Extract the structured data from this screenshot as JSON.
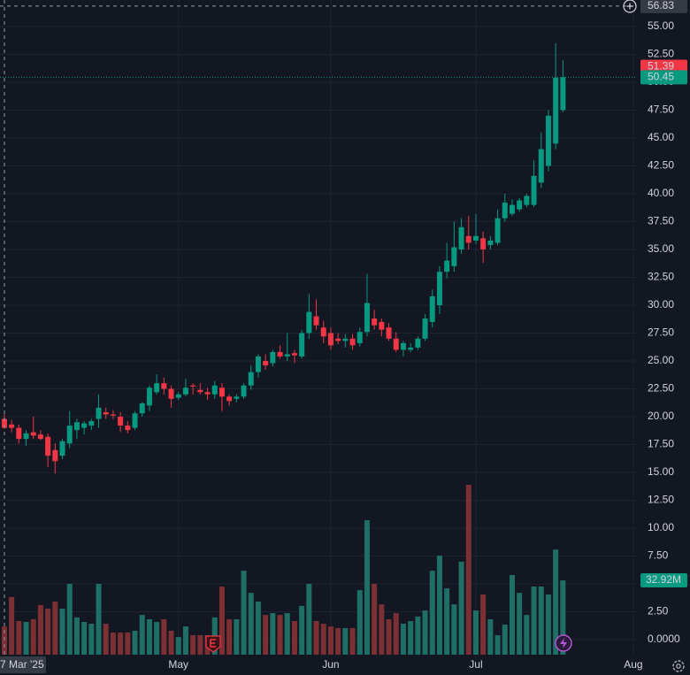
{
  "chart_data": {
    "type": "candlestick",
    "open": [
      19.8,
      19.3,
      19.0,
      18.0,
      18.6,
      18.4,
      18.2,
      17.0,
      16.5,
      17.6,
      18.8,
      19.0,
      19.2,
      19.8,
      20.4,
      20.2,
      20.0,
      19.2,
      19.0,
      20.3,
      21.0,
      22.2,
      23.0,
      22.5,
      21.7,
      22.0,
      22.8,
      22.4,
      22.2,
      22.0,
      22.6,
      21.8,
      21.6,
      21.8,
      22.8,
      24.0,
      25.0,
      24.8,
      25.8,
      25.4,
      25.7,
      25.4,
      27.5,
      29.0,
      28.0,
      27.5,
      27.0,
      26.8,
      27.0,
      26.6,
      27.6,
      28.8,
      28.5,
      28.0,
      27.0,
      26.0,
      26.0,
      26.2,
      27.0,
      28.5,
      30.0,
      33.0,
      33.5,
      35.0,
      36.2,
      35.8,
      36.0,
      35.4,
      35.6,
      37.8,
      38.2,
      38.6,
      39.0,
      39.0,
      41.0,
      42.5,
      44.5,
      47.5
    ],
    "high": [
      20.2,
      19.7,
      19.3,
      18.8,
      20.0,
      18.8,
      18.5,
      17.6,
      18.0,
      20.5,
      19.8,
      19.6,
      19.8,
      22.0,
      20.8,
      20.6,
      20.4,
      19.6,
      20.5,
      21.3,
      22.8,
      23.8,
      23.5,
      22.8,
      22.2,
      23.4,
      23.0,
      23.0,
      22.6,
      23.2,
      23.0,
      22.0,
      22.0,
      23.0,
      24.6,
      25.6,
      25.6,
      26.0,
      26.4,
      27.5,
      26.0,
      27.8,
      31.0,
      30.5,
      28.6,
      28.0,
      27.5,
      27.4,
      27.4,
      28.0,
      32.8,
      29.6,
      28.8,
      28.4,
      27.6,
      26.8,
      26.6,
      27.2,
      29.2,
      31.4,
      33.5,
      35.6,
      37.5,
      37.8,
      38.0,
      38.2,
      36.6,
      36.2,
      38.6,
      40.0,
      39.5,
      39.6,
      40.0,
      43.0,
      45.5,
      47.5,
      53.5,
      52.0
    ],
    "low": [
      18.9,
      18.6,
      17.6,
      17.4,
      18.0,
      17.9,
      15.5,
      14.9,
      16.2,
      17.2,
      18.0,
      18.4,
      18.8,
      19.0,
      19.8,
      19.8,
      18.6,
      18.5,
      18.8,
      20.0,
      20.5,
      22.0,
      22.0,
      20.8,
      21.5,
      21.8,
      22.0,
      22.0,
      21.5,
      21.6,
      20.5,
      21.0,
      21.3,
      21.6,
      22.4,
      23.5,
      24.2,
      24.5,
      25.2,
      25.0,
      24.8,
      25.2,
      27.0,
      27.8,
      26.6,
      26.0,
      26.5,
      26.2,
      26.0,
      26.3,
      27.2,
      27.8,
      27.2,
      26.8,
      25.8,
      25.4,
      25.8,
      26.0,
      26.8,
      28.0,
      29.2,
      32.4,
      33.0,
      34.6,
      35.0,
      35.5,
      33.8,
      35.0,
      35.4,
      37.5,
      38.0,
      38.4,
      38.8,
      38.8,
      40.5,
      42.0,
      44.0,
      47.3
    ],
    "close": [
      19.0,
      19.0,
      18.0,
      18.5,
      18.3,
      18.0,
      16.5,
      16.0,
      17.8,
      19.2,
      19.5,
      19.4,
      19.6,
      20.8,
      20.2,
      20.1,
      19.2,
      18.8,
      20.3,
      21.2,
      22.6,
      23.0,
      22.5,
      21.6,
      22.0,
      22.6,
      22.7,
      22.2,
      22.0,
      22.8,
      21.8,
      21.4,
      21.8,
      22.8,
      24.0,
      25.4,
      24.6,
      25.8,
      25.4,
      25.6,
      25.5,
      27.5,
      29.4,
      28.2,
      27.2,
      26.4,
      26.8,
      27.0,
      26.4,
      27.6,
      30.2,
      28.2,
      27.8,
      27.0,
      26.0,
      26.6,
      26.2,
      27.0,
      28.8,
      30.8,
      33.0,
      34.0,
      35.2,
      37.0,
      35.6,
      36.2,
      35.0,
      35.8,
      37.8,
      39.2,
      39.0,
      39.4,
      39.8,
      41.6,
      44.0,
      47.0,
      50.4,
      50.45
    ],
    "volume": [
      12.5,
      25.5,
      14.9,
      14.5,
      15.7,
      22.0,
      20.4,
      23.5,
      20.4,
      31.4,
      16.5,
      14.5,
      13.7,
      31.4,
      13.7,
      9.8,
      9.8,
      9.8,
      10.6,
      17.6,
      15.7,
      14.5,
      15.7,
      10.6,
      7.8,
      12.5,
      8.6,
      8.6,
      8.6,
      16.5,
      30.2,
      15.7,
      15.7,
      37.2,
      27.4,
      23.5,
      17.6,
      18.4,
      17.6,
      18.4,
      14.9,
      21.6,
      31.4,
      14.9,
      13.7,
      12.5,
      11.8,
      11.8,
      11.8,
      28.6,
      59.6,
      31.4,
      22.3,
      15.7,
      18.4,
      13.7,
      14.9,
      16.9,
      19.6,
      37.2,
      43.9,
      29.4,
      22.3,
      41.2,
      75.3,
      19.6,
      26.7,
      15.7,
      8.6,
      13.3,
      35.3,
      27.4,
      17.6,
      30.2,
      30.2,
      26.7,
      46.6,
      32.92
    ],
    "volume_last_label": "32.92M",
    "volume_ylim": [
      0,
      100
    ],
    "up_color": "#089981",
    "down_color": "#f23645",
    "volume_up_color": "#1f6f66",
    "volume_down_color": "#7c3034",
    "ylim": [
      -1.35,
      57.38
    ],
    "yticks": [
      {
        "value": 0,
        "label": "0.0000"
      },
      {
        "value": 2.5,
        "label": "2.50"
      },
      {
        "value": 5,
        "label": "5.00"
      },
      {
        "value": 7.5,
        "label": "7.50"
      },
      {
        "value": 10,
        "label": "10.00"
      },
      {
        "value": 12.5,
        "label": "12.50"
      },
      {
        "value": 15,
        "label": "15.00"
      },
      {
        "value": 17.5,
        "label": "17.50"
      },
      {
        "value": 20,
        "label": "20.00"
      },
      {
        "value": 22.5,
        "label": "22.50"
      },
      {
        "value": 25,
        "label": "25.00"
      },
      {
        "value": 27.5,
        "label": "27.50"
      },
      {
        "value": 30,
        "label": "30.00"
      },
      {
        "value": 32.5,
        "label": "32.50"
      },
      {
        "value": 35,
        "label": "35.00"
      },
      {
        "value": 37.5,
        "label": "37.50"
      },
      {
        "value": 40,
        "label": "40.00"
      },
      {
        "value": 42.5,
        "label": "42.50"
      },
      {
        "value": 45,
        "label": "45.00"
      },
      {
        "value": 47.5,
        "label": "47.50"
      },
      {
        "value": 50,
        "label": "50.00"
      },
      {
        "value": 52.5,
        "label": "52.50"
      },
      {
        "value": 55,
        "label": "55.00"
      }
    ],
    "xlim": [
      -0.6,
      87.2
    ],
    "xticks": [
      {
        "value": 24,
        "label": "May"
      },
      {
        "value": 45,
        "label": "Jun"
      },
      {
        "value": 65,
        "label": "Jul"
      },
      {
        "value": 86.7,
        "label": "Aug"
      }
    ],
    "grid": true,
    "crosshair_price": 56.83,
    "crosshair_date_label": "7 Mar '25",
    "price_marker": 51.39,
    "last_price": 50.45
  }
}
